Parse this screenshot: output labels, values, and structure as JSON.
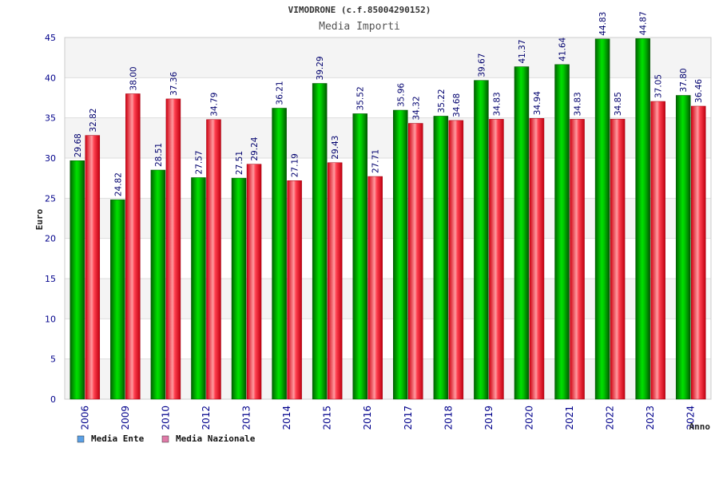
{
  "chart_data": {
    "type": "bar",
    "title": "VIMODRONE (c.f.85004290152)",
    "subtitle": "Media Importi",
    "xlabel": "Anno",
    "ylabel": "Euro",
    "ylim": [
      0,
      45
    ],
    "yticks": [
      0,
      5,
      10,
      15,
      20,
      25,
      30,
      35,
      40,
      45
    ],
    "grid": true,
    "legend_position": "bottom-left",
    "categories": [
      "2006",
      "2009",
      "2010",
      "2012",
      "2013",
      "2014",
      "2015",
      "2016",
      "2017",
      "2018",
      "2019",
      "2020",
      "2021",
      "2022",
      "2023",
      "2024"
    ],
    "series": [
      {
        "name": "Media Ente",
        "color": "#00cc00",
        "legend_color": "#5aa0e6",
        "values": [
          29.68,
          24.82,
          28.51,
          27.57,
          27.51,
          36.21,
          39.29,
          35.52,
          35.96,
          35.22,
          39.67,
          41.37,
          41.64,
          44.83,
          44.87,
          37.8
        ],
        "labels": [
          "29.68",
          "24.82",
          "28.51",
          "27.57",
          "27.51",
          "36.21",
          "39.29",
          "35.52",
          "35.96",
          "35.22",
          "39.67",
          "41.37",
          "41.64",
          "44.83",
          "44.87",
          "37.80"
        ]
      },
      {
        "name": "Media Nazionale",
        "color": "#ee1c25",
        "legend_color": "#e07aa8",
        "values": [
          32.82,
          38.0,
          37.36,
          34.79,
          29.24,
          27.19,
          29.43,
          27.71,
          34.32,
          34.68,
          34.83,
          34.94,
          34.83,
          34.85,
          37.05,
          36.46
        ],
        "labels": [
          "32.82",
          "38.00",
          "37.36",
          "34.79",
          "29.24",
          "27.19",
          "29.43",
          "27.71",
          "34.32",
          "34.68",
          "34.83",
          "34.94",
          "34.83",
          "34.85",
          "37.05",
          "36.46"
        ]
      }
    ]
  }
}
